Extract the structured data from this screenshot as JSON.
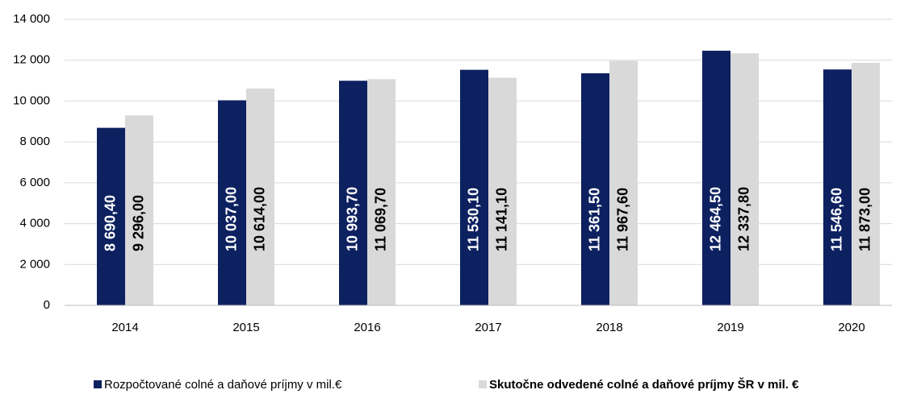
{
  "chart_data": {
    "type": "bar",
    "categories": [
      "2014",
      "2015",
      "2016",
      "2017",
      "2018",
      "2019",
      "2020"
    ],
    "series": [
      {
        "name": "Rozpočtované colné a daňové príjmy v mil.€",
        "color": "#0d2160",
        "values": [
          8690.4,
          10037.0,
          10993.7,
          11530.1,
          11361.5,
          12464.5,
          11546.6
        ],
        "value_labels": [
          "8 690,40",
          "10 037,00",
          "10 993,70",
          "11 530,10",
          "11 361,50",
          "12 464,50",
          "11 546,60"
        ]
      },
      {
        "name": "Skutočne odvedené colné a daňové príjmy ŠR v mil. €",
        "color": "#d9d9d9",
        "values": [
          9296.0,
          10614.0,
          11069.7,
          11141.1,
          11967.6,
          12337.8,
          11873.0
        ],
        "value_labels": [
          "9 296,00",
          "10 614,00",
          "11 069,70",
          "11 141,10",
          "11 967,60",
          "12 337,80",
          "11 873,00"
        ]
      }
    ],
    "ylim": [
      0,
      14000
    ],
    "yticks": [
      0,
      {
        "value": 2000,
        "label": "2 000"
      },
      {
        "value": 4000,
        "label": "4 000"
      },
      {
        "value": 6000,
        "label": "6 000"
      },
      {
        "value": 8000,
        "label": "8 000"
      },
      {
        "value": 10000,
        "label": "10 000"
      },
      {
        "value": 12000,
        "label": "12 000"
      },
      {
        "value": 14000,
        "label": "14 000"
      }
    ],
    "grid": true,
    "legend": "bottom"
  }
}
